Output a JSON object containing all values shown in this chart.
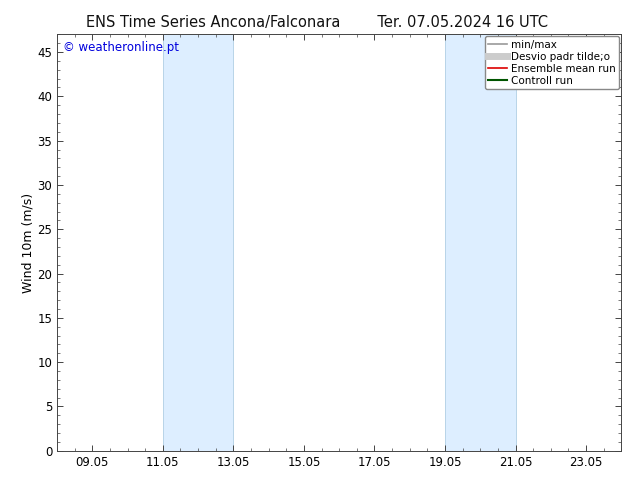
{
  "title_left": "ENS Time Series Ancona/Falconara",
  "title_right": "Ter. 07.05.2024 16 UTC",
  "ylabel": "Wind 10m (m/s)",
  "watermark": "© weatheronline.pt",
  "watermark_color": "#0000dd",
  "x_start_date": "2024-05-08",
  "x_end_date": "2024-05-24",
  "xtick_labels": [
    "09.05",
    "11.05",
    "13.05",
    "15.05",
    "17.05",
    "19.05",
    "21.05",
    "23.05"
  ],
  "xtick_days": [
    9,
    11,
    13,
    15,
    17,
    19,
    21,
    23
  ],
  "ylim": [
    0,
    47
  ],
  "ytick_positions": [
    0,
    5,
    10,
    15,
    20,
    25,
    30,
    35,
    40,
    45
  ],
  "ytick_labels": [
    "0",
    "5",
    "10",
    "15",
    "20",
    "25",
    "30",
    "35",
    "40",
    "45"
  ],
  "shaded_bands": [
    {
      "day_start": 11,
      "day_end": 13
    },
    {
      "day_start": 19,
      "day_end": 21
    }
  ],
  "shade_color": "#ddeeff",
  "shade_border_color": "#b8d4e8",
  "legend_entries": [
    {
      "label": "min/max",
      "color": "#999999",
      "lw": 1.2
    },
    {
      "label": "Desvio padr tilde;o",
      "color": "#cccccc",
      "lw": 5
    },
    {
      "label": "Ensemble mean run",
      "color": "#dd0000",
      "lw": 1.2
    },
    {
      "label": "Controll run",
      "color": "#005500",
      "lw": 1.5
    }
  ],
  "background_color": "#ffffff",
  "spine_color": "#444444",
  "tick_color": "#444444",
  "title_fontsize": 10.5,
  "label_fontsize": 9,
  "tick_fontsize": 8.5,
  "legend_fontsize": 7.5,
  "watermark_fontsize": 8.5
}
